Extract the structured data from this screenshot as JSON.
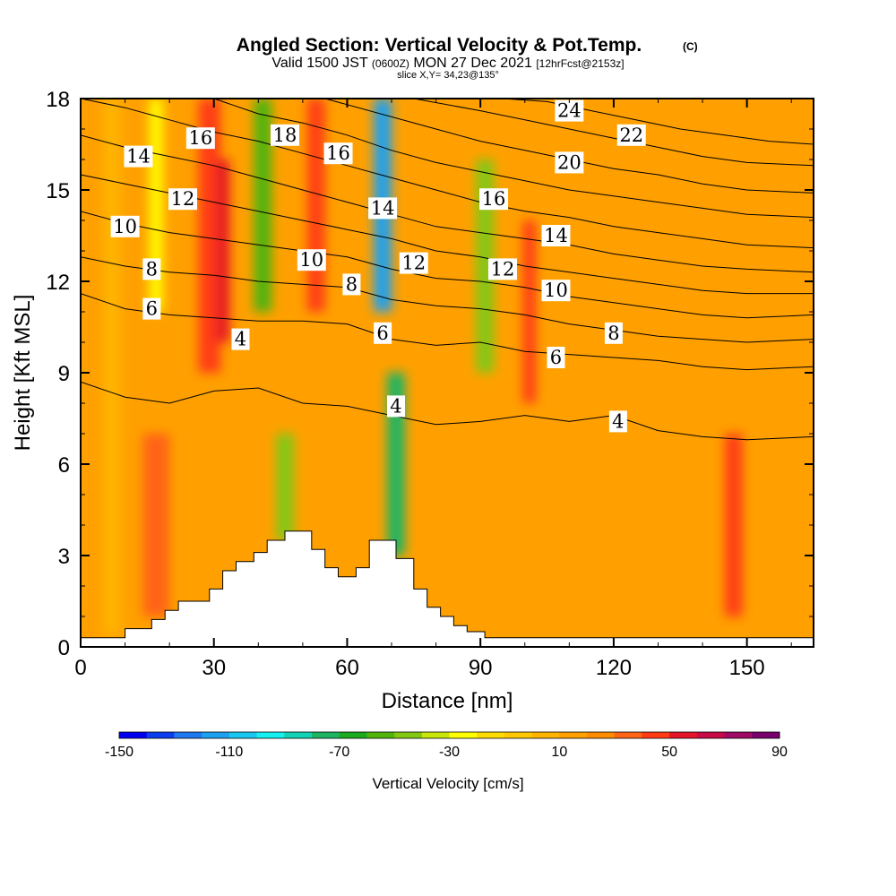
{
  "chart_data": {
    "type": "heatmap",
    "title": "Angled Section: Vertical Velocity & Pot.Temp.",
    "title_mark": "(C)",
    "subtitle_parts": [
      "Valid 1500 JST ",
      "(0600Z)",
      " MON 27 Dec 2021 ",
      "[12hrFcst@2153z]"
    ],
    "slice_label": "slice X,Y= 34,23@135°",
    "xlabel": "Distance [nm]",
    "ylabel": "Height [Kft MSL]",
    "xlim": [
      0,
      165
    ],
    "ylim": [
      0,
      18
    ],
    "x_ticks": [
      "0",
      "30",
      "60",
      "90",
      "120",
      "150"
    ],
    "y_ticks": [
      "0",
      "3",
      "6",
      "9",
      "12",
      "15",
      "18"
    ],
    "background_value": 15,
    "velocity_bands": [
      {
        "x": 7,
        "width": 4,
        "ytop": 18,
        "ybot": 0.4,
        "value": 5
      },
      {
        "x": 17,
        "width": 6,
        "ytop": 7,
        "ybot": 1,
        "value": 32
      },
      {
        "x": 17,
        "width": 3,
        "ytop": 18,
        "ybot": 11,
        "value": -30
      },
      {
        "x": 29,
        "width": 5,
        "ytop": 18,
        "ybot": 9,
        "value": 45
      },
      {
        "x": 32,
        "width": 3,
        "ytop": 16,
        "ybot": 10,
        "value": 55
      },
      {
        "x": 41,
        "width": 4,
        "ytop": 18,
        "ybot": 11,
        "value": -55
      },
      {
        "x": 46,
        "width": 4,
        "ytop": 7,
        "ybot": 3.5,
        "value": -50
      },
      {
        "x": 53,
        "width": 4,
        "ytop": 18,
        "ybot": 11,
        "value": 45
      },
      {
        "x": 68,
        "width": 4,
        "ytop": 18,
        "ybot": 11,
        "value": -115
      },
      {
        "x": 71,
        "width": 4,
        "ytop": 9,
        "ybot": 3,
        "value": -75
      },
      {
        "x": 91,
        "width": 4,
        "ytop": 16,
        "ybot": 9,
        "value": -45
      },
      {
        "x": 101,
        "width": 3,
        "ytop": 14,
        "ybot": 8,
        "value": 45
      },
      {
        "x": 147,
        "width": 4,
        "ytop": 7,
        "ybot": 1,
        "value": 40
      }
    ],
    "theta_contours": [
      {
        "level": 4,
        "points": [
          [
            0,
            8.7
          ],
          [
            10,
            8.2
          ],
          [
            20,
            8.0
          ],
          [
            30,
            8.4
          ],
          [
            40,
            8.5
          ],
          [
            50,
            8.0
          ],
          [
            60,
            7.9
          ],
          [
            70,
            7.6
          ],
          [
            80,
            7.3
          ],
          [
            90,
            7.4
          ],
          [
            100,
            7.6
          ],
          [
            110,
            7.4
          ],
          [
            120,
            7.6
          ],
          [
            130,
            7.1
          ],
          [
            140,
            6.9
          ],
          [
            150,
            6.8
          ],
          [
            165,
            6.9
          ]
        ]
      },
      {
        "level": 6,
        "points": [
          [
            0,
            11.6
          ],
          [
            10,
            11.1
          ],
          [
            20,
            10.9
          ],
          [
            30,
            10.8
          ],
          [
            40,
            10.7
          ],
          [
            50,
            10.7
          ],
          [
            60,
            10.6
          ],
          [
            70,
            10.1
          ],
          [
            80,
            9.9
          ],
          [
            90,
            10.0
          ],
          [
            100,
            9.7
          ],
          [
            110,
            9.6
          ],
          [
            120,
            9.5
          ],
          [
            130,
            9.4
          ],
          [
            140,
            9.2
          ],
          [
            150,
            9.1
          ],
          [
            165,
            9.2
          ]
        ]
      },
      {
        "level": 8,
        "points": [
          [
            0,
            12.8
          ],
          [
            10,
            12.5
          ],
          [
            20,
            12.3
          ],
          [
            30,
            12.2
          ],
          [
            40,
            12.0
          ],
          [
            50,
            11.9
          ],
          [
            60,
            11.8
          ],
          [
            70,
            11.4
          ],
          [
            80,
            11.2
          ],
          [
            90,
            11.1
          ],
          [
            100,
            10.9
          ],
          [
            110,
            10.6
          ],
          [
            120,
            10.4
          ],
          [
            130,
            10.2
          ],
          [
            140,
            10.1
          ],
          [
            150,
            10.0
          ],
          [
            165,
            10.1
          ]
        ]
      },
      {
        "level": 10,
        "points": [
          [
            0,
            14.3
          ],
          [
            10,
            13.9
          ],
          [
            20,
            13.6
          ],
          [
            30,
            13.4
          ],
          [
            40,
            13.2
          ],
          [
            50,
            13.0
          ],
          [
            60,
            12.8
          ],
          [
            70,
            12.4
          ],
          [
            80,
            12.1
          ],
          [
            90,
            12.0
          ],
          [
            100,
            11.8
          ],
          [
            110,
            11.5
          ],
          [
            120,
            11.3
          ],
          [
            130,
            11.1
          ],
          [
            140,
            10.9
          ],
          [
            150,
            10.8
          ],
          [
            165,
            10.9
          ]
        ]
      },
      {
        "level": 12,
        "points": [
          [
            0,
            15.5
          ],
          [
            10,
            15.2
          ],
          [
            20,
            14.9
          ],
          [
            30,
            14.6
          ],
          [
            40,
            14.3
          ],
          [
            50,
            14.0
          ],
          [
            60,
            13.7
          ],
          [
            70,
            13.4
          ],
          [
            80,
            13.0
          ],
          [
            90,
            12.8
          ],
          [
            100,
            12.5
          ],
          [
            110,
            12.3
          ],
          [
            120,
            12.1
          ],
          [
            130,
            11.9
          ],
          [
            140,
            11.7
          ],
          [
            150,
            11.6
          ],
          [
            165,
            11.6
          ]
        ]
      },
      {
        "level": 14,
        "points": [
          [
            0,
            16.8
          ],
          [
            10,
            16.4
          ],
          [
            20,
            16.1
          ],
          [
            30,
            15.8
          ],
          [
            40,
            15.4
          ],
          [
            50,
            15.0
          ],
          [
            60,
            14.6
          ],
          [
            70,
            14.2
          ],
          [
            80,
            13.8
          ],
          [
            90,
            13.6
          ],
          [
            100,
            13.4
          ],
          [
            110,
            13.2
          ],
          [
            120,
            12.9
          ],
          [
            130,
            12.7
          ],
          [
            140,
            12.5
          ],
          [
            150,
            12.4
          ],
          [
            165,
            12.3
          ]
        ]
      },
      {
        "level": 16,
        "points": [
          [
            0,
            18.0
          ],
          [
            10,
            17.7
          ],
          [
            20,
            17.3
          ],
          [
            30,
            16.9
          ],
          [
            40,
            16.6
          ],
          [
            50,
            16.2
          ],
          [
            60,
            15.8
          ],
          [
            70,
            15.4
          ],
          [
            80,
            15.0
          ],
          [
            90,
            14.6
          ],
          [
            100,
            14.3
          ],
          [
            110,
            14.1
          ],
          [
            120,
            13.8
          ],
          [
            130,
            13.6
          ],
          [
            140,
            13.4
          ],
          [
            150,
            13.2
          ],
          [
            165,
            13.1
          ]
        ]
      },
      {
        "level": 18,
        "points": [
          [
            30,
            18.0
          ],
          [
            40,
            17.5
          ],
          [
            50,
            17.2
          ],
          [
            60,
            16.8
          ],
          [
            70,
            16.3
          ],
          [
            80,
            15.9
          ],
          [
            90,
            15.6
          ],
          [
            100,
            15.3
          ],
          [
            110,
            15.0
          ],
          [
            120,
            14.8
          ],
          [
            130,
            14.6
          ],
          [
            140,
            14.4
          ],
          [
            150,
            14.2
          ],
          [
            165,
            14.1
          ]
        ]
      },
      {
        "level": 20,
        "points": [
          [
            55,
            18.0
          ],
          [
            70,
            17.4
          ],
          [
            80,
            17.0
          ],
          [
            90,
            16.6
          ],
          [
            100,
            16.3
          ],
          [
            110,
            16.0
          ],
          [
            120,
            15.7
          ],
          [
            130,
            15.5
          ],
          [
            140,
            15.2
          ],
          [
            150,
            15.0
          ],
          [
            165,
            14.9
          ]
        ]
      },
      {
        "level": 22,
        "points": [
          [
            75,
            18.0
          ],
          [
            90,
            17.6
          ],
          [
            100,
            17.3
          ],
          [
            110,
            17.0
          ],
          [
            120,
            16.7
          ],
          [
            130,
            16.4
          ],
          [
            140,
            16.1
          ],
          [
            150,
            15.9
          ],
          [
            165,
            15.8
          ]
        ]
      },
      {
        "level": 24,
        "points": [
          [
            95,
            18.0
          ],
          [
            105,
            17.9
          ],
          [
            115,
            17.6
          ],
          [
            125,
            17.3
          ],
          [
            135,
            17.0
          ],
          [
            145,
            16.8
          ],
          [
            155,
            16.6
          ],
          [
            165,
            16.5
          ]
        ]
      }
    ],
    "contour_labels": [
      {
        "text": "14",
        "x": 13,
        "y": 16.1
      },
      {
        "text": "16",
        "x": 27,
        "y": 16.7
      },
      {
        "text": "18",
        "x": 46,
        "y": 16.8
      },
      {
        "text": "16",
        "x": 58,
        "y": 16.2
      },
      {
        "text": "24",
        "x": 110,
        "y": 17.6
      },
      {
        "text": "22",
        "x": 124,
        "y": 16.8
      },
      {
        "text": "20",
        "x": 110,
        "y": 15.9
      },
      {
        "text": "12",
        "x": 23,
        "y": 14.7
      },
      {
        "text": "10",
        "x": 10,
        "y": 13.8
      },
      {
        "text": "14",
        "x": 68,
        "y": 14.4
      },
      {
        "text": "16",
        "x": 93,
        "y": 14.7
      },
      {
        "text": "14",
        "x": 107,
        "y": 13.5
      },
      {
        "text": "8",
        "x": 16,
        "y": 12.4
      },
      {
        "text": "10",
        "x": 52,
        "y": 12.7
      },
      {
        "text": "12",
        "x": 75,
        "y": 12.6
      },
      {
        "text": "12",
        "x": 95,
        "y": 12.4
      },
      {
        "text": "8",
        "x": 61,
        "y": 11.9
      },
      {
        "text": "10",
        "x": 107,
        "y": 11.7
      },
      {
        "text": "6",
        "x": 16,
        "y": 11.1
      },
      {
        "text": "6",
        "x": 68,
        "y": 10.3
      },
      {
        "text": "4",
        "x": 36,
        "y": 10.1
      },
      {
        "text": "8",
        "x": 120,
        "y": 10.3
      },
      {
        "text": "6",
        "x": 107,
        "y": 9.5
      },
      {
        "text": "4",
        "x": 71,
        "y": 7.9
      },
      {
        "text": "4",
        "x": 121,
        "y": 7.4
      }
    ],
    "terrain": [
      [
        0,
        0.3
      ],
      [
        10,
        0.3
      ],
      [
        10,
        0.6
      ],
      [
        16,
        0.6
      ],
      [
        16,
        0.9
      ],
      [
        19,
        0.9
      ],
      [
        19,
        1.2
      ],
      [
        22,
        1.2
      ],
      [
        22,
        1.5
      ],
      [
        29,
        1.5
      ],
      [
        29,
        1.9
      ],
      [
        32,
        1.9
      ],
      [
        32,
        2.5
      ],
      [
        35,
        2.5
      ],
      [
        35,
        2.8
      ],
      [
        39,
        2.8
      ],
      [
        39,
        3.1
      ],
      [
        42,
        3.1
      ],
      [
        42,
        3.5
      ],
      [
        46,
        3.5
      ],
      [
        46,
        3.8
      ],
      [
        52,
        3.8
      ],
      [
        52,
        3.2
      ],
      [
        55,
        3.2
      ],
      [
        55,
        2.6
      ],
      [
        58,
        2.6
      ],
      [
        58,
        2.3
      ],
      [
        62,
        2.3
      ],
      [
        62,
        2.6
      ],
      [
        65,
        2.6
      ],
      [
        65,
        3.5
      ],
      [
        71,
        3.5
      ],
      [
        71,
        2.9
      ],
      [
        75,
        2.9
      ],
      [
        75,
        1.9
      ],
      [
        78,
        1.9
      ],
      [
        78,
        1.3
      ],
      [
        81,
        1.3
      ],
      [
        81,
        1.0
      ],
      [
        84,
        1.0
      ],
      [
        84,
        0.7
      ],
      [
        87,
        0.7
      ],
      [
        87,
        0.5
      ],
      [
        91,
        0.5
      ],
      [
        91,
        0.3
      ],
      [
        165,
        0.3
      ]
    ],
    "colorbar": {
      "label": "Vertical Velocity [cm/s]",
      "min": -150,
      "max": 90,
      "step": 10,
      "tick_labels": [
        "-150",
        "-110",
        "-70",
        "-30",
        "10",
        "50",
        "90"
      ],
      "colors": [
        "#0000f0",
        "#0a3cf0",
        "#1e78f0",
        "#1ea0f0",
        "#18c8f0",
        "#14f0f0",
        "#14d2b4",
        "#1eb464",
        "#1eaa1e",
        "#50b40a",
        "#82c814",
        "#c8e60a",
        "#ffff00",
        "#ffdc00",
        "#ffc800",
        "#ffb400",
        "#ffa000",
        "#ff8c00",
        "#ff6414",
        "#ff3c14",
        "#e61428",
        "#c80a46",
        "#a00a64",
        "#78006e"
      ]
    }
  }
}
